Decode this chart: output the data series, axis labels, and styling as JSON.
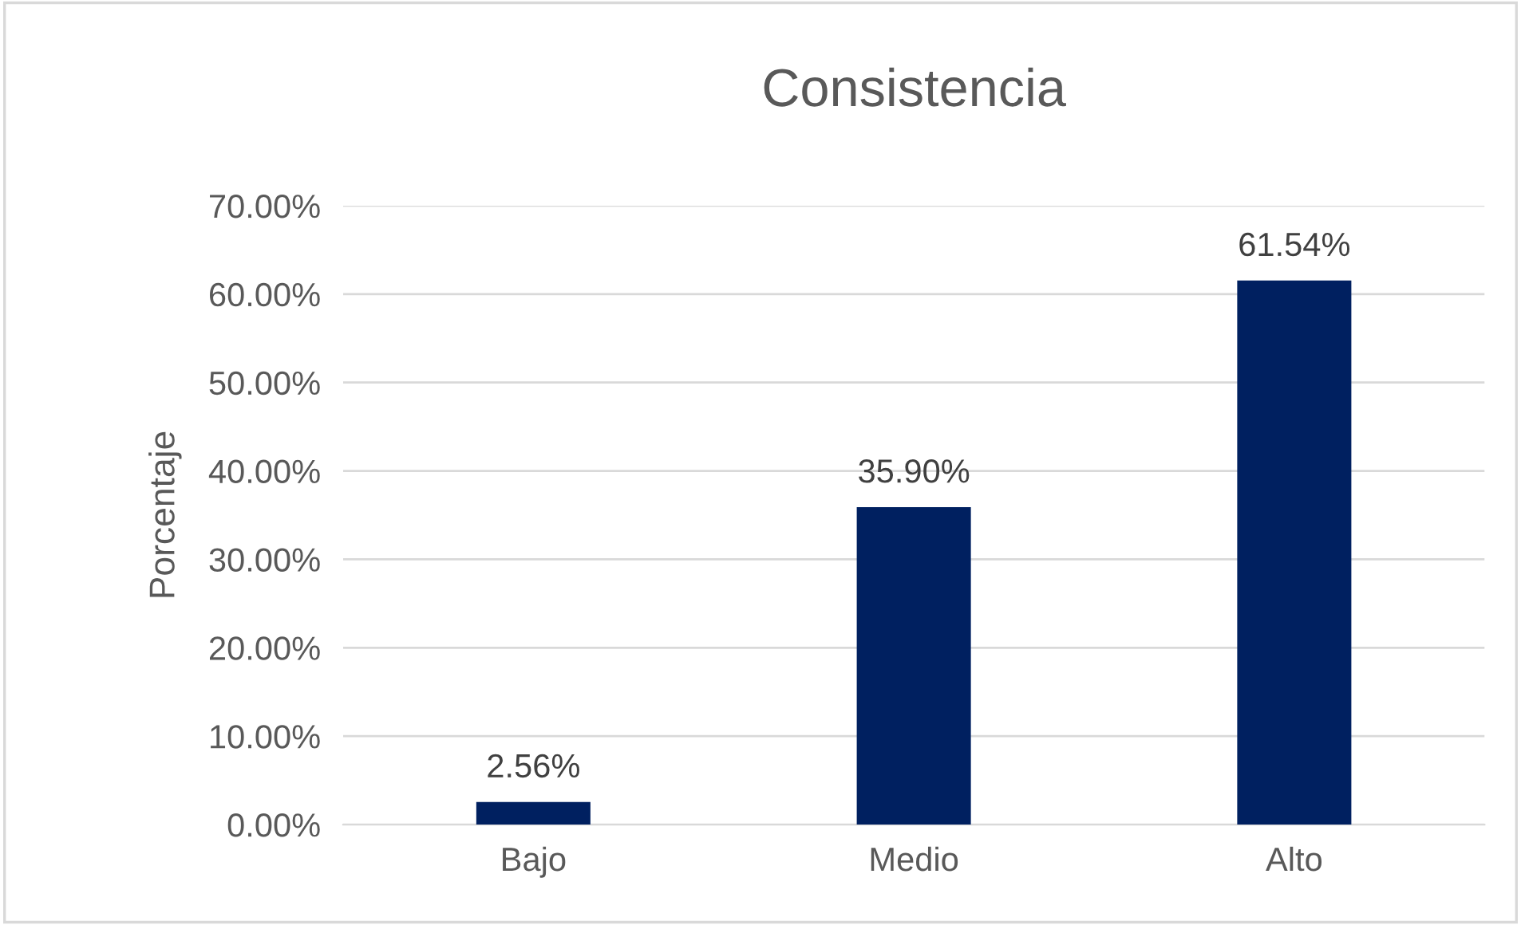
{
  "chart_data": {
    "type": "bar",
    "title": "Consistencia",
    "ylabel": "Porcentaje",
    "categories": [
      "Bajo",
      "Medio",
      "Alto"
    ],
    "values": [
      2.56,
      35.9,
      61.54
    ],
    "value_labels": [
      "2.56%",
      "35.90%",
      "61.54%"
    ],
    "color": "#002060",
    "ylim": [
      0,
      70
    ],
    "yticks": [
      {
        "value": 0,
        "label": "0.00%"
      },
      {
        "value": 10,
        "label": "10.00%"
      },
      {
        "value": 20,
        "label": "20.00%"
      },
      {
        "value": 30,
        "label": "30.00%"
      },
      {
        "value": 40,
        "label": "40.00%"
      },
      {
        "value": 50,
        "label": "50.00%"
      },
      {
        "value": 60,
        "label": "60.00%"
      },
      {
        "value": 70,
        "label": "70.00%"
      }
    ],
    "grid": "y",
    "legend": false
  }
}
